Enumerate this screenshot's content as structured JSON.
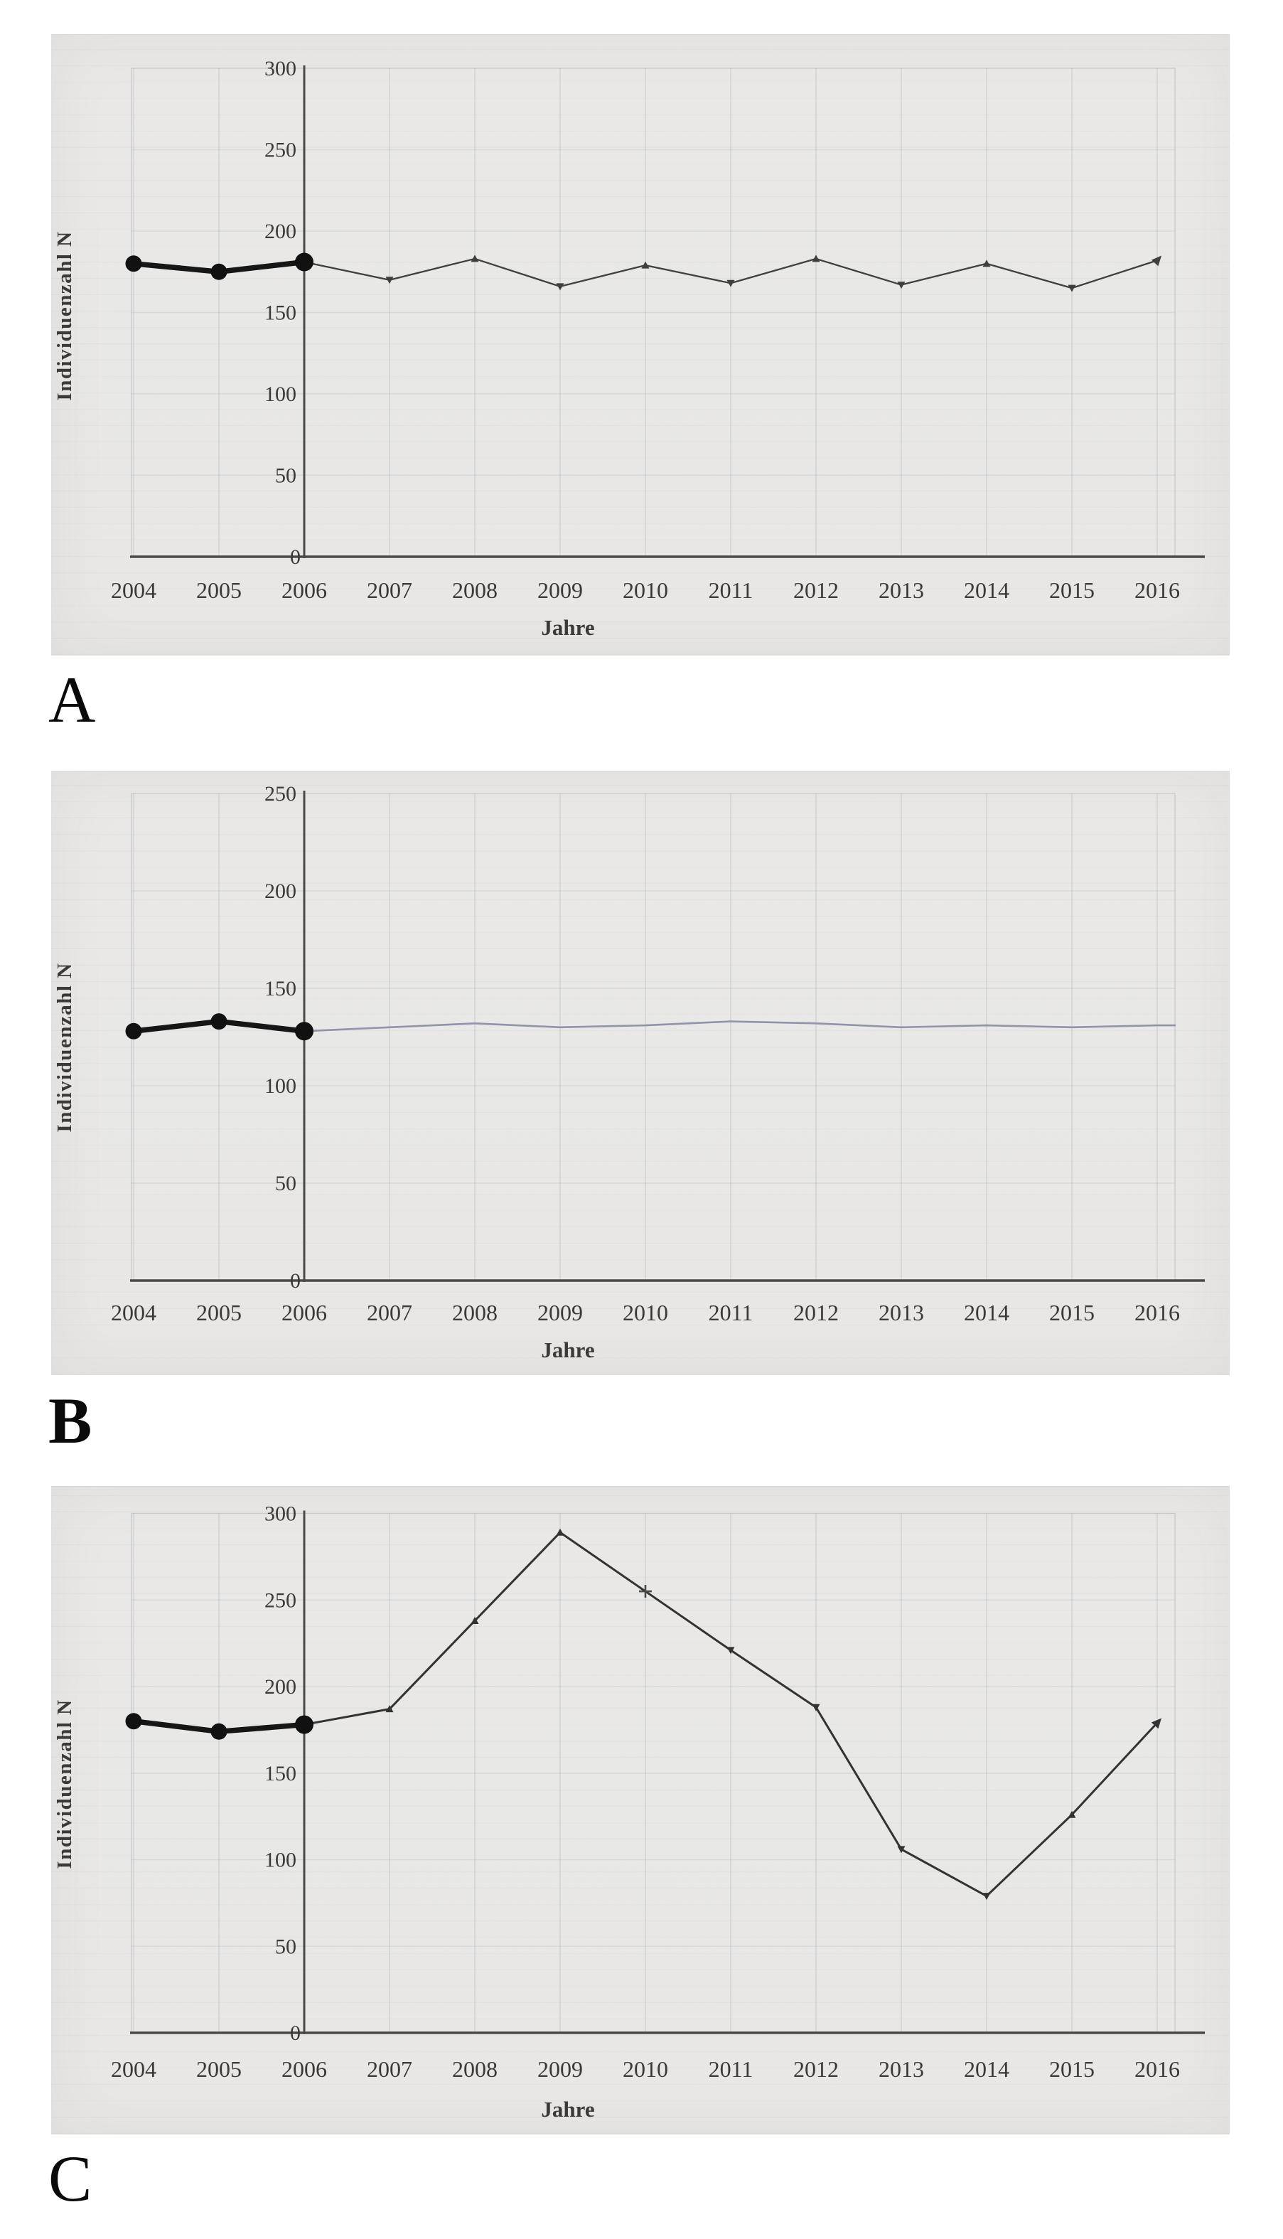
{
  "figure": {
    "background_color": "#ffffff",
    "text_color": "#3b3a37",
    "axis_color": "#4a4a4a"
  },
  "chart_data": [
    {
      "type": "line",
      "panel_label": "A",
      "xlabel": "Jahre",
      "ylabel": "Individuenzahl N",
      "x": [
        2004,
        2005,
        2006,
        2007,
        2008,
        2009,
        2010,
        2011,
        2012,
        2013,
        2014,
        2015,
        2016
      ],
      "series": [
        {
          "name": "Individuenzahl N",
          "values": [
            180,
            175,
            181,
            170,
            183,
            166,
            179,
            168,
            183,
            167,
            180,
            165,
            182
          ]
        }
      ],
      "ylim": [
        0,
        300
      ],
      "yticks": [
        300,
        250,
        200,
        150,
        100,
        50,
        0
      ],
      "grid": true,
      "legend": "none",
      "bold_segment_years": [
        2004,
        2005,
        2006
      ],
      "marker": "triangle",
      "plus_marker_year": null,
      "end_arrow": true,
      "extend_to_edge": false,
      "line_color": "#3f3f3f",
      "bold_color": "#161616"
    },
    {
      "type": "line",
      "panel_label": "B",
      "xlabel": "Jahre",
      "ylabel": "Individuenzahl N",
      "x": [
        2004,
        2005,
        2006,
        2007,
        2008,
        2009,
        2010,
        2011,
        2012,
        2013,
        2014,
        2015,
        2016
      ],
      "series": [
        {
          "name": "Individuenzahl N",
          "values": [
            128,
            133,
            128,
            130,
            132,
            130,
            131,
            133,
            132,
            130,
            131,
            130,
            131
          ]
        }
      ],
      "ylim": [
        0,
        250
      ],
      "yticks": [
        250,
        200,
        150,
        100,
        50,
        0
      ],
      "grid": true,
      "legend": "none",
      "bold_segment_years": [
        2004,
        2005,
        2006
      ],
      "marker": "none",
      "plus_marker_year": null,
      "end_arrow": false,
      "extend_to_edge": true,
      "line_color": "#9093aa",
      "bold_color": "#161616"
    },
    {
      "type": "line",
      "panel_label": "C",
      "xlabel": "Jahre",
      "ylabel": "Individuenzahl N",
      "x": [
        2004,
        2005,
        2006,
        2007,
        2008,
        2009,
        2010,
        2011,
        2012,
        2013,
        2014,
        2015,
        2016
      ],
      "series": [
        {
          "name": "Individuenzahl N",
          "values": [
            180,
            174,
            178,
            187,
            238,
            289,
            255,
            221,
            188,
            106,
            79,
            126,
            179
          ]
        }
      ],
      "ylim": [
        0,
        300
      ],
      "yticks": [
        300,
        250,
        200,
        150,
        100,
        50,
        0
      ],
      "grid": true,
      "legend": "none",
      "bold_segment_years": [
        2004,
        2005,
        2006
      ],
      "marker": "triangle",
      "plus_marker_year": 2010,
      "end_arrow": true,
      "extend_to_edge": false,
      "line_color": "#333333",
      "bold_color": "#161616"
    }
  ]
}
